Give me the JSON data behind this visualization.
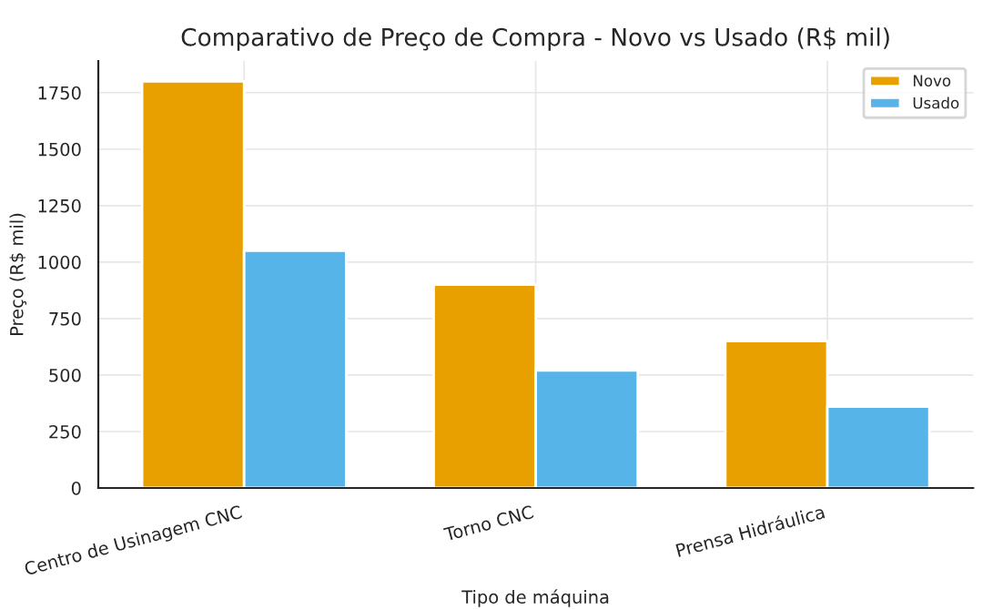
{
  "chart_data": {
    "type": "bar",
    "title": "Comparativo de Preço de Compra - Novo vs Usado (R$ mil)",
    "xlabel": "Tipo de máquina",
    "ylabel": "Preço (R$ mil)",
    "categories": [
      "Centro de Usinagem CNC",
      "Torno CNC",
      "Prensa Hidráulica"
    ],
    "series": [
      {
        "name": "Novo",
        "color": "#e8a000",
        "values": [
          1800,
          900,
          650
        ]
      },
      {
        "name": "Usado",
        "color": "#56b4e9",
        "values": [
          1050,
          520,
          360
        ]
      }
    ],
    "ylim": [
      0,
      1890
    ],
    "yticks": [
      0,
      250,
      500,
      750,
      1000,
      1250,
      1500,
      1750
    ],
    "grid": true,
    "legend": "top right"
  }
}
